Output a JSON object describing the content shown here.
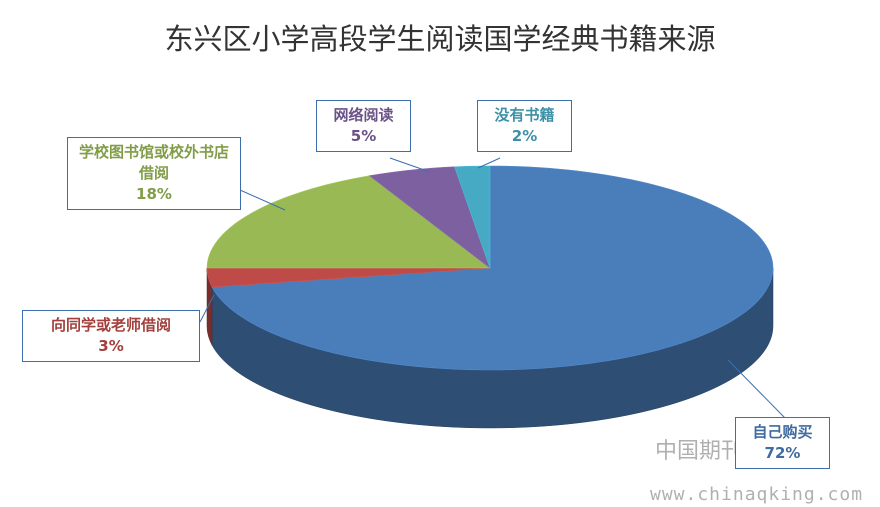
{
  "chart_data": {
    "type": "pie3d",
    "title": "东兴区小学高段学生阅读国学经典书籍来源",
    "categories": [
      "自己购买",
      "向同学或老师借阅",
      "学校图书馆或校外书店借阅",
      "网络阅读",
      "没有书籍"
    ],
    "values": [
      72,
      3,
      18,
      5,
      2
    ],
    "value_labels": [
      "72%",
      "3%",
      "18%",
      "5%",
      "2%"
    ],
    "colors": [
      "#4a7ebb",
      "#be4b48",
      "#98b954",
      "#7d60a0",
      "#46aac5"
    ]
  },
  "watermark": [
    "中国期刊网",
    "www.chinaqking.com"
  ]
}
